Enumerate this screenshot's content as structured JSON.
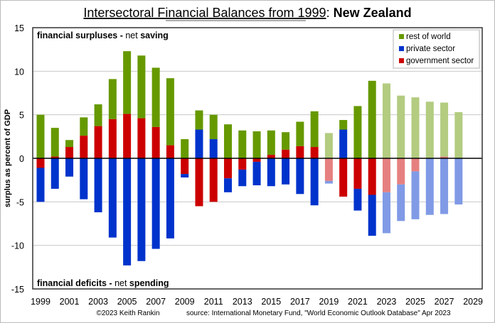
{
  "chart_data": {
    "type": "bar",
    "stacked": true,
    "title": {
      "main": "Intersectoral Financial Balances from 1999",
      "separator": ": ",
      "country": "New Zealand"
    },
    "ylabel": "surplus as percent of GDP",
    "xlabel": "",
    "ylim": [
      -15,
      15
    ],
    "yticks": [
      -15,
      -10,
      -5,
      0,
      5,
      10,
      15
    ],
    "xticks": [
      "1999",
      "2001",
      "2003",
      "2005",
      "2007",
      "2009",
      "2011",
      "2013",
      "2015",
      "2017",
      "2019",
      "2021",
      "2023",
      "2025",
      "2027",
      "2029"
    ],
    "grid": true,
    "legend_position": "top-right",
    "annotations": {
      "top": {
        "bold1": "financial surpluses",
        "dash": " - ",
        "normal": "net ",
        "bold2": "saving"
      },
      "bottom": {
        "bold1": "financial deficits",
        "dash": " - ",
        "normal": "net ",
        "bold2": "spending"
      }
    },
    "categories": [
      1999,
      2000,
      2001,
      2002,
      2003,
      2004,
      2005,
      2006,
      2007,
      2008,
      2009,
      2010,
      2011,
      2012,
      2013,
      2014,
      2015,
      2016,
      2017,
      2018,
      2019,
      2020,
      2021,
      2022,
      2023,
      2024,
      2025,
      2026,
      2027,
      2028
    ],
    "faded": [
      false,
      false,
      false,
      false,
      false,
      false,
      false,
      false,
      false,
      false,
      false,
      false,
      false,
      false,
      false,
      false,
      false,
      false,
      false,
      false,
      true,
      false,
      false,
      false,
      true,
      true,
      true,
      true,
      true,
      true
    ],
    "series": [
      {
        "name": "government sector",
        "color": "#cc0000",
        "faded_color": "#e68080",
        "values": [
          -1.1,
          0.2,
          1.3,
          2.6,
          3.7,
          4.5,
          5.1,
          4.6,
          3.6,
          1.5,
          -1.8,
          -5.5,
          -5.0,
          -2.3,
          -1.3,
          -0.4,
          0.4,
          1.0,
          1.4,
          1.3,
          -2.6,
          -4.4,
          -3.5,
          -4.2,
          -3.9,
          -3.0,
          -1.5,
          0.0,
          0.2,
          0.0
        ]
      },
      {
        "name": "private sector",
        "color": "#0033cc",
        "faded_color": "#809ae6",
        "values": [
          -3.9,
          -3.5,
          -2.1,
          -4.7,
          -6.2,
          -9.1,
          -12.3,
          -11.8,
          -10.4,
          -9.2,
          -0.4,
          3.3,
          2.2,
          -1.6,
          -1.9,
          -2.7,
          -3.2,
          -3.0,
          -4.1,
          -5.4,
          -0.3,
          3.3,
          -2.5,
          -4.7,
          -4.7,
          -4.2,
          -5.5,
          -6.5,
          -6.4,
          -5.3
        ]
      },
      {
        "name": "rest of world",
        "color": "#669900",
        "faded_color": "#b3cc80",
        "values": [
          5.0,
          3.3,
          0.8,
          2.1,
          2.5,
          4.6,
          7.2,
          7.2,
          6.8,
          7.7,
          2.2,
          2.2,
          2.8,
          3.9,
          3.2,
          3.1,
          2.8,
          2.0,
          2.8,
          4.1,
          2.9,
          1.1,
          6.0,
          8.9,
          8.6,
          7.2,
          7.0,
          6.5,
          6.2,
          5.3
        ]
      }
    ],
    "legend": [
      "rest of world",
      "private sector",
      "government sector"
    ],
    "footer": {
      "copyright": "©2023 Keith Rankin",
      "source": "source:  International Monetary Fund, \"World Economic Outlook Database\" Apr 2023"
    }
  }
}
